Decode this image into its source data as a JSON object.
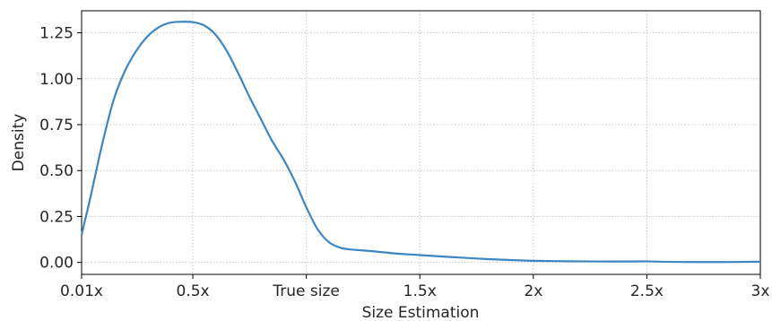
{
  "chart_data": {
    "type": "line",
    "title": "",
    "xlabel": "Size Estimation",
    "ylabel": "Density",
    "x_tick_labels": [
      "0.01x",
      "0.5x",
      "True size",
      "1.5x",
      "2x",
      "2.5x",
      "3x"
    ],
    "x_tick_values": [
      0.01,
      0.5,
      1.0,
      1.5,
      2.0,
      2.5,
      3.0
    ],
    "y_tick_labels": [
      "0.00",
      "0.25",
      "0.50",
      "0.75",
      "1.00",
      "1.25"
    ],
    "y_tick_values": [
      0,
      0.25,
      0.5,
      0.75,
      1.0,
      1.25
    ],
    "xlim": [
      0.01,
      3.0
    ],
    "ylim": [
      -0.065,
      1.37
    ],
    "grid": true,
    "legend": "none",
    "series": [
      {
        "color": "#3d86c2",
        "x": [
          0.01,
          0.05,
          0.1,
          0.15,
          0.2,
          0.25,
          0.3,
          0.35,
          0.4,
          0.45,
          0.5,
          0.55,
          0.6,
          0.65,
          0.7,
          0.75,
          0.8,
          0.85,
          0.9,
          0.95,
          1.0,
          1.05,
          1.1,
          1.15,
          1.2,
          1.25,
          1.3,
          1.4,
          1.5,
          1.6,
          1.7,
          1.8,
          1.9,
          2.0,
          2.2,
          2.4,
          2.5,
          2.6,
          2.8,
          3.0
        ],
        "y": [
          0.15,
          0.36,
          0.64,
          0.88,
          1.04,
          1.15,
          1.23,
          1.28,
          1.305,
          1.31,
          1.308,
          1.29,
          1.24,
          1.15,
          1.03,
          0.9,
          0.78,
          0.66,
          0.56,
          0.44,
          0.3,
          0.18,
          0.11,
          0.08,
          0.07,
          0.065,
          0.06,
          0.048,
          0.04,
          0.032,
          0.025,
          0.018,
          0.013,
          0.009,
          0.006,
          0.005,
          0.006,
          0.003,
          0.002,
          0.004
        ]
      }
    ]
  }
}
